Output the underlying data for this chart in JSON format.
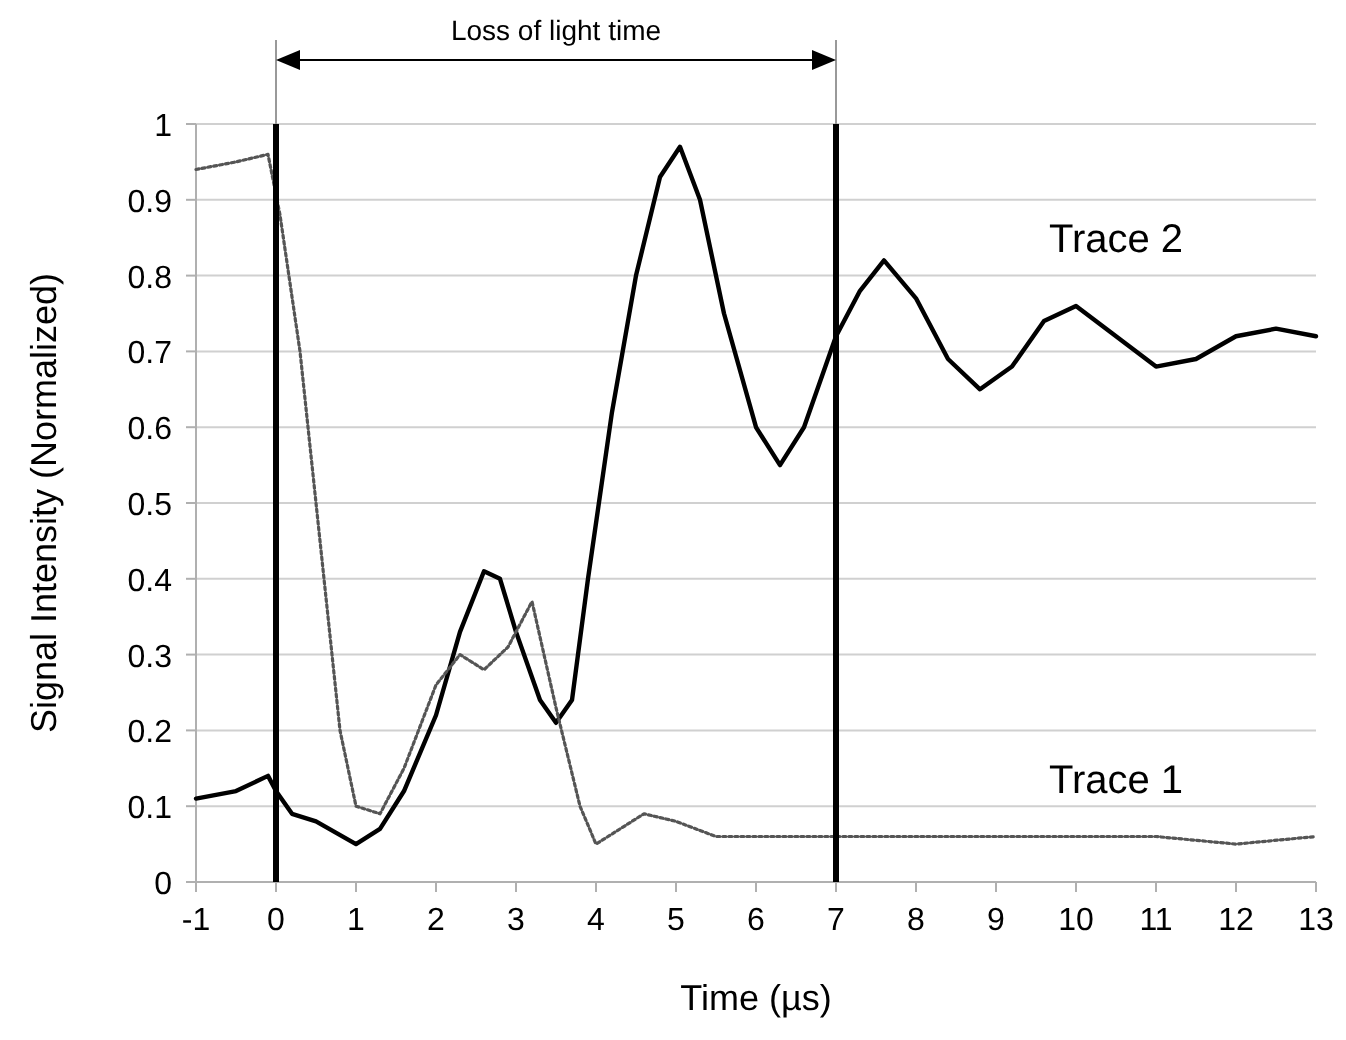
{
  "chart_data": {
    "type": "line",
    "xlabel": "Time (µs)",
    "ylabel": "Signal Intensity (Normalized)",
    "xlim": [
      -1,
      13
    ],
    "ylim": [
      0,
      1
    ],
    "xticks": [
      -1,
      0,
      1,
      2,
      3,
      4,
      5,
      6,
      7,
      8,
      9,
      10,
      11,
      12,
      13
    ],
    "yticks": [
      0,
      0.1,
      0.2,
      0.3,
      0.4,
      0.5,
      0.6,
      0.7,
      0.8,
      0.9,
      1
    ],
    "grid": "y",
    "annotations": [
      "Loss of light time"
    ],
    "ref_lines": [
      {
        "axis": "x",
        "value": 0,
        "color": "#000000"
      },
      {
        "axis": "x",
        "value": 7,
        "color": "#000000"
      }
    ],
    "series": [
      {
        "name": "Trace 2",
        "color": "#000000",
        "line_style": "solid",
        "x": [
          -1,
          -0.5,
          -0.1,
          0,
          0.2,
          0.5,
          1,
          1.3,
          1.6,
          2,
          2.3,
          2.6,
          2.8,
          3,
          3.3,
          3.5,
          3.7,
          3.9,
          4.2,
          4.5,
          4.8,
          5.05,
          5.3,
          5.6,
          6,
          6.3,
          6.6,
          7,
          7.3,
          7.6,
          8,
          8.4,
          8.8,
          9.2,
          9.6,
          10,
          10.5,
          11,
          11.5,
          12,
          12.5,
          13
        ],
        "values": [
          0.11,
          0.12,
          0.14,
          0.12,
          0.09,
          0.08,
          0.05,
          0.07,
          0.12,
          0.22,
          0.33,
          0.41,
          0.4,
          0.33,
          0.24,
          0.21,
          0.24,
          0.4,
          0.62,
          0.8,
          0.93,
          0.97,
          0.9,
          0.75,
          0.6,
          0.55,
          0.6,
          0.72,
          0.78,
          0.82,
          0.77,
          0.69,
          0.65,
          0.68,
          0.74,
          0.76,
          0.72,
          0.68,
          0.69,
          0.72,
          0.73,
          0.72
        ]
      },
      {
        "name": "Trace 1",
        "color": "#555555",
        "line_style": "dotted",
        "x": [
          -1,
          -0.5,
          -0.1,
          0.05,
          0.3,
          0.6,
          0.8,
          1,
          1.3,
          1.6,
          2,
          2.3,
          2.6,
          2.9,
          3.2,
          3.5,
          3.8,
          4,
          4.3,
          4.6,
          5,
          5.5,
          6,
          7,
          8,
          9,
          10,
          11,
          12,
          13
        ],
        "values": [
          0.94,
          0.95,
          0.96,
          0.88,
          0.7,
          0.4,
          0.2,
          0.1,
          0.09,
          0.15,
          0.26,
          0.3,
          0.28,
          0.31,
          0.37,
          0.23,
          0.1,
          0.05,
          0.07,
          0.09,
          0.08,
          0.06,
          0.06,
          0.06,
          0.06,
          0.06,
          0.06,
          0.06,
          0.05,
          0.06
        ]
      }
    ]
  }
}
